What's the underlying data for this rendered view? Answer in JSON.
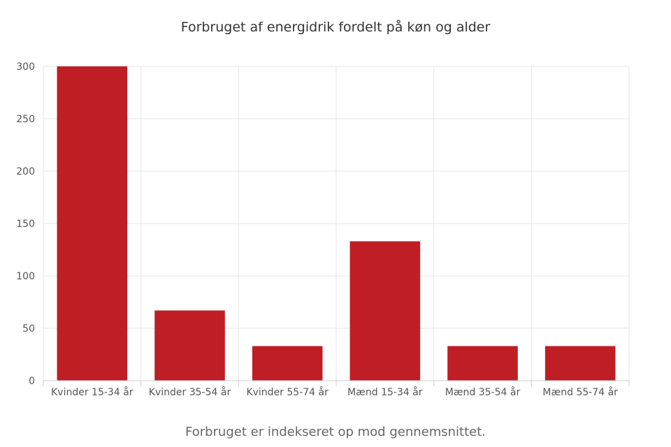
{
  "chart_data": {
    "type": "bar",
    "title": "Forbruget af energidrik fordelt på køn og alder",
    "caption": "Forbruget er indekseret op mod gennemsnittet.",
    "categories": [
      "Kvinder 15-34 år",
      "Kvinder 35-54 år",
      "Kvinder 55-74 år",
      "Mænd 15-34 år",
      "Mænd 35-54 år",
      "Mænd 55-74 år"
    ],
    "values": [
      300,
      67,
      33,
      133,
      33,
      33
    ],
    "ylim": [
      0,
      300
    ],
    "yticks": [
      0,
      50,
      100,
      150,
      200,
      250,
      300
    ],
    "xlabel": "",
    "ylabel": "",
    "grid": true,
    "colors": {
      "bar": "#be1e24",
      "grid": "#e6e6e6",
      "axis": "#cccccc"
    }
  }
}
